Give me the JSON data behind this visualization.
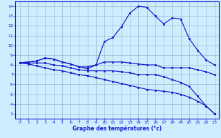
{
  "xlabel": "Graphe des températures (°c)",
  "bg_color": "#cceeff",
  "line_color": "#1a1acd",
  "grid_color": "#99bbcc",
  "x_ticks": [
    0,
    1,
    2,
    3,
    4,
    5,
    6,
    7,
    8,
    9,
    10,
    11,
    12,
    13,
    14,
    15,
    16,
    17,
    18,
    19,
    20,
    21,
    22,
    23
  ],
  "y_ticks": [
    3,
    4,
    5,
    6,
    7,
    8,
    9,
    10,
    11,
    12,
    13,
    14
  ],
  "ylim": [
    2.5,
    14.5
  ],
  "xlim": [
    -0.5,
    23.5
  ],
  "curve1": [
    8.2,
    8.3,
    8.4,
    8.7,
    8.6,
    8.3,
    8.1,
    7.8,
    7.6,
    8.0,
    10.4,
    10.8,
    11.9,
    13.3,
    14.0,
    13.9,
    13.0,
    12.2,
    12.8,
    12.7,
    10.7,
    9.5,
    8.5,
    8.0
  ],
  "curve2": [
    8.2,
    8.3,
    8.4,
    8.7,
    8.6,
    8.3,
    8.1,
    7.8,
    7.8,
    8.0,
    8.3,
    8.3,
    8.3,
    8.2,
    8.1,
    8.0,
    8.0,
    7.7,
    7.7,
    7.7,
    7.7,
    7.5,
    7.3,
    7.0
  ],
  "curve3": [
    8.2,
    8.2,
    8.2,
    8.2,
    8.0,
    7.9,
    7.7,
    7.5,
    7.4,
    7.4,
    7.4,
    7.4,
    7.3,
    7.2,
    7.0,
    7.0,
    7.0,
    6.8,
    6.5,
    6.2,
    5.8,
    4.8,
    3.8,
    3.0
  ],
  "curve4": [
    8.2,
    8.1,
    7.9,
    7.7,
    7.5,
    7.4,
    7.2,
    7.0,
    6.9,
    6.7,
    6.5,
    6.3,
    6.1,
    5.9,
    5.7,
    5.5,
    5.4,
    5.3,
    5.2,
    5.0,
    4.7,
    4.3,
    3.8,
    3.0
  ]
}
